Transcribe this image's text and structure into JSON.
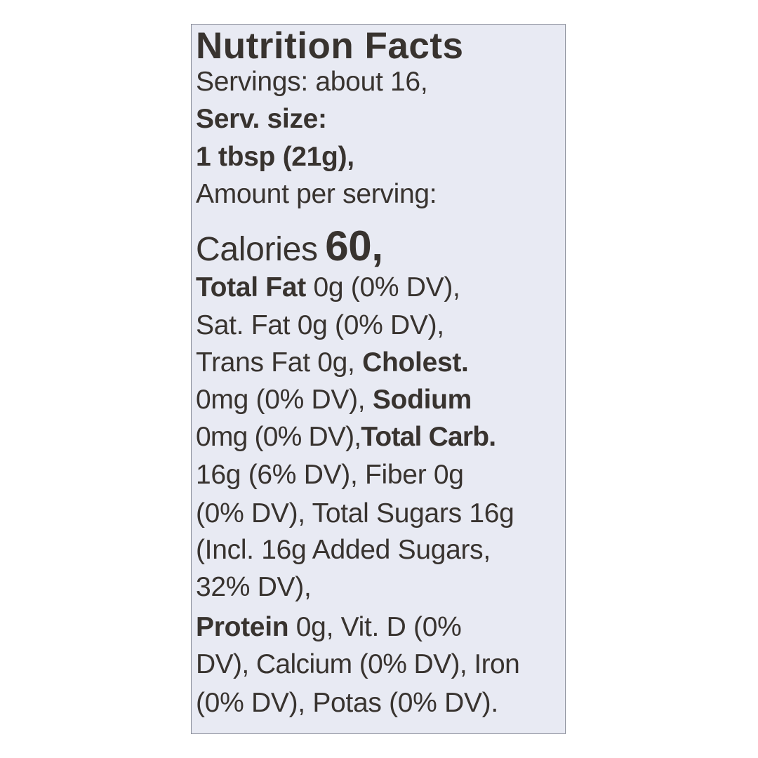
{
  "title": "Nutrition Facts",
  "servings": "Servings: about 16,",
  "serving_size_label": "Serv. size:",
  "serving_size": "1 tbsp (21g),",
  "amount_per_serving": "Amount per serving:",
  "calories_label": "Calories",
  "calories": "60,",
  "lines": [
    [
      "Total Fat",
      " 0g (0% DV),"
    ],
    [
      "Sat. Fat 0g (0% DV),"
    ],
    [
      "Trans Fat 0g, ",
      "Cholest."
    ],
    [
      "0mg (0% DV), ",
      "Sodium"
    ],
    [
      "0mg (0% DV),",
      "Total Carb."
    ],
    [
      "16g (6% DV), Fiber 0g"
    ],
    [
      "(0% DV), Total Sugars 16g"
    ],
    [
      "(Incl. 16g Added Sugars,"
    ],
    [
      "32% DV),"
    ],
    [
      "Protein",
      " 0g, Vit. D (0%"
    ],
    [
      "DV), Calcium (0% DV), Iron"
    ],
    [
      "(0% DV), Potas (0% DV)."
    ]
  ]
}
